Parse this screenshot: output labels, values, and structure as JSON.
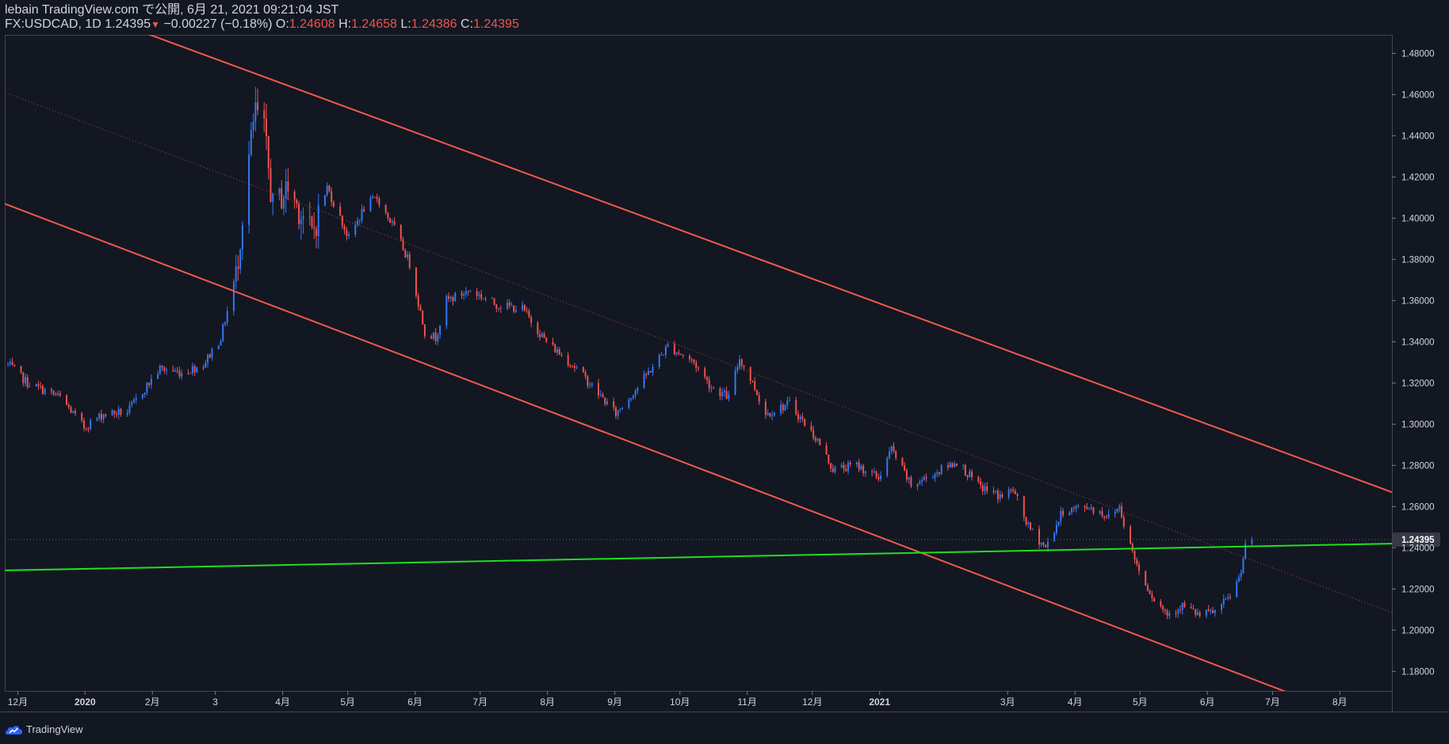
{
  "header": {
    "published_line": "lebain TradingView.com で公開, 6月 21, 2021 09:21:04 JST",
    "symbol": "FX:USDCAD, 1D",
    "last": "1.24395",
    "arrow": "▼",
    "change": "−0.00227 (−0.18%)",
    "o_label": "O:",
    "o_value": "1.24608",
    "h_label": "H:",
    "h_value": "1.24658",
    "l_label": "L:",
    "l_value": "1.24386",
    "c_label": "C:",
    "c_value": "1.24395"
  },
  "footer": {
    "brand": "TradingView",
    "logo_icon": "tradingview-cloud-icon"
  },
  "colors": {
    "background": "#131722",
    "up": "#3179f5",
    "down": "#ef5350",
    "channel": "#f05a4f",
    "support": "#1de11d",
    "text": "#d1d4dc"
  },
  "chart_data": {
    "type": "candlestick",
    "symbol": "FX:USDCAD",
    "interval": "1D",
    "y_ticks": [
      "1.48000",
      "1.46000",
      "1.44000",
      "1.42000",
      "1.40000",
      "1.38000",
      "1.36000",
      "1.34000",
      "1.32000",
      "1.30000",
      "1.28000",
      "1.26000",
      "1.24000",
      "1.22000",
      "1.20000",
      "1.18000"
    ],
    "x_ticks": [
      "12月",
      "2020",
      "2月",
      "3",
      "4月",
      "5月",
      "6月",
      "7月",
      "8月",
      "9月",
      "10月",
      "11月",
      "12月",
      "2021",
      "3月",
      "4月",
      "5月",
      "6月",
      "7月",
      "8月"
    ],
    "x_tick_dates": [
      "2019-12-01",
      "2020-01-01",
      "2020-02-01",
      "2020-03-01",
      "2020-04-01",
      "2020-05-01",
      "2020-06-01",
      "2020-07-01",
      "2020-08-01",
      "2020-09-01",
      "2020-10-01",
      "2020-11-01",
      "2020-12-01",
      "2021-01-01",
      "2021-03-01",
      "2021-04-01",
      "2021-05-01",
      "2021-06-01",
      "2021-07-01",
      "2021-08-01"
    ],
    "x_range": [
      "2019-11-25",
      "2021-08-25"
    ],
    "y_range": [
      1.1705,
      1.489
    ],
    "last_price_label": "1.24395",
    "last_price": 1.24395,
    "anchors": [
      [
        "2019-11-26",
        1.329
      ],
      [
        "2019-12-05",
        1.32
      ],
      [
        "2019-12-20",
        1.313
      ],
      [
        "2019-12-31",
        1.2985
      ],
      [
        "2020-01-09",
        1.305
      ],
      [
        "2020-01-20",
        1.306
      ],
      [
        "2020-02-04",
        1.327
      ],
      [
        "2020-02-14",
        1.325
      ],
      [
        "2020-02-24",
        1.329
      ],
      [
        "2020-03-03",
        1.342
      ],
      [
        "2020-03-10",
        1.372
      ],
      [
        "2020-03-16",
        1.43
      ],
      [
        "2020-03-19",
        1.452
      ],
      [
        "2020-03-23",
        1.442
      ],
      [
        "2020-03-27",
        1.405
      ],
      [
        "2020-04-03",
        1.415
      ],
      [
        "2020-04-14",
        1.392
      ],
      [
        "2020-04-21",
        1.415
      ],
      [
        "2020-05-01",
        1.39
      ],
      [
        "2020-05-08",
        1.405
      ],
      [
        "2020-05-14",
        1.41
      ],
      [
        "2020-05-22",
        1.395
      ],
      [
        "2020-05-29",
        1.378
      ],
      [
        "2020-06-05",
        1.345
      ],
      [
        "2020-06-10",
        1.342
      ],
      [
        "2020-06-15",
        1.36
      ],
      [
        "2020-06-26",
        1.365
      ],
      [
        "2020-07-08",
        1.358
      ],
      [
        "2020-07-20",
        1.356
      ],
      [
        "2020-07-31",
        1.34
      ],
      [
        "2020-08-14",
        1.327
      ],
      [
        "2020-08-28",
        1.31
      ],
      [
        "2020-09-01",
        1.305
      ],
      [
        "2020-09-11",
        1.318
      ],
      [
        "2020-09-25",
        1.338
      ],
      [
        "2020-10-07",
        1.33
      ],
      [
        "2020-10-15",
        1.318
      ],
      [
        "2020-10-23",
        1.313
      ],
      [
        "2020-10-28",
        1.332
      ],
      [
        "2020-11-03",
        1.32
      ],
      [
        "2020-11-09",
        1.305
      ],
      [
        "2020-11-20",
        1.31
      ],
      [
        "2020-12-03",
        1.292
      ],
      [
        "2020-12-10",
        1.278
      ],
      [
        "2020-12-21",
        1.28
      ],
      [
        "2020-12-31",
        1.274
      ],
      [
        "2021-01-06",
        1.288
      ],
      [
        "2021-01-15",
        1.27
      ],
      [
        "2021-01-29",
        1.278
      ],
      [
        "2021-02-05",
        1.282
      ],
      [
        "2021-02-15",
        1.27
      ],
      [
        "2021-02-25",
        1.265
      ],
      [
        "2021-03-03",
        1.268
      ],
      [
        "2021-03-10",
        1.25
      ],
      [
        "2021-03-18",
        1.24
      ],
      [
        "2021-03-26",
        1.258
      ],
      [
        "2021-04-07",
        1.26
      ],
      [
        "2021-04-16",
        1.255
      ],
      [
        "2021-04-21",
        1.26
      ],
      [
        "2021-04-26",
        1.241
      ],
      [
        "2021-04-30",
        1.229
      ],
      [
        "2021-05-07",
        1.215
      ],
      [
        "2021-05-13",
        1.208
      ],
      [
        "2021-05-20",
        1.212
      ],
      [
        "2021-05-28",
        1.207
      ],
      [
        "2021-06-04",
        1.209
      ],
      [
        "2021-06-10",
        1.215
      ],
      [
        "2021-06-15",
        1.225
      ],
      [
        "2021-06-18",
        1.24
      ],
      [
        "2021-06-21",
        1.24395
      ]
    ],
    "lines": [
      {
        "name": "channel-upper",
        "from": [
          "2019-11-25",
          1.515
        ],
        "to": [
          "2021-08-25",
          1.267
        ],
        "style": "solid"
      },
      {
        "name": "channel-lower",
        "from": [
          "2019-11-25",
          1.407
        ],
        "to": [
          "2021-08-25",
          1.1505
        ],
        "style": "solid"
      },
      {
        "name": "channel-middle",
        "from": [
          "2019-11-25",
          1.461
        ],
        "to": [
          "2021-08-25",
          1.2085
        ],
        "style": "dotted"
      },
      {
        "name": "support-line",
        "from": [
          "2019-11-25",
          1.229
        ],
        "to": [
          "2021-08-25",
          1.242
        ],
        "style": "solid"
      }
    ]
  }
}
